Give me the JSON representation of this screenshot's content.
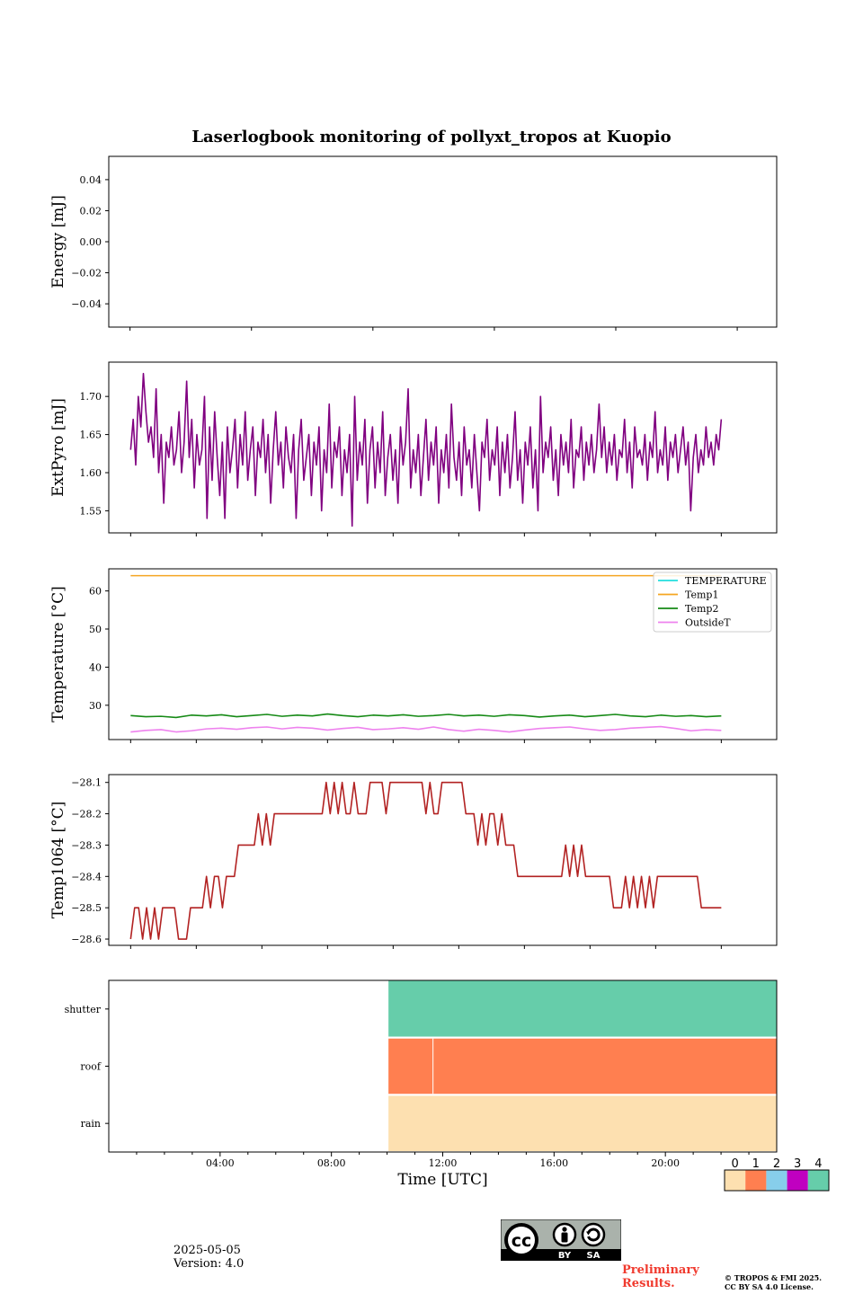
{
  "title": "Laserlogbook monitoring of pollyxt_tropos at Kuopio",
  "footer": {
    "date": "2025-05-05",
    "version": "Version: 4.0",
    "preliminary": [
      "Preliminary",
      "Results."
    ],
    "copyright": [
      "© TROPOS & FMI 2025.",
      "CC BY SA 4.0 License."
    ],
    "license_badge": {
      "cc": "cc",
      "by": "BY",
      "sa": "SA"
    }
  },
  "chart_data": [
    {
      "type": "line",
      "ylabel": "Energy [mJ]",
      "ylim": [
        -0.055,
        0.055
      ],
      "yticks": [
        "0.04",
        "0.02",
        "0.00",
        "−0.02",
        "−0.04"
      ],
      "ytick_values": [
        0.04,
        0.02,
        0.0,
        -0.02,
        -0.04
      ],
      "xlim_hours": [
        0.3,
        22.3
      ],
      "xtick_hours": [
        1,
        5,
        9,
        13,
        17,
        21
      ],
      "series": []
    },
    {
      "type": "line",
      "ylabel": "ExtPyro [mJ]",
      "ylim": [
        1.521,
        1.745
      ],
      "yticks": [
        "1.70",
        "1.65",
        "1.60",
        "1.55"
      ],
      "ytick_values": [
        1.7,
        1.65,
        1.6,
        1.55
      ],
      "xlim_hours": [
        0.0,
        22.9
      ],
      "xtick_hours": [
        0.75,
        3.0,
        5.25,
        7.5,
        9.75,
        12.0,
        14.25,
        16.5,
        18.75,
        21.0
      ],
      "series": [
        {
          "color": "#800080",
          "x_range_hours": [
            0.75,
            21.0
          ],
          "values": [
            1.63,
            1.67,
            1.61,
            1.7,
            1.66,
            1.73,
            1.68,
            1.64,
            1.66,
            1.62,
            1.71,
            1.6,
            1.65,
            1.56,
            1.64,
            1.62,
            1.66,
            1.61,
            1.63,
            1.68,
            1.6,
            1.64,
            1.72,
            1.62,
            1.67,
            1.58,
            1.65,
            1.61,
            1.63,
            1.7,
            1.54,
            1.66,
            1.59,
            1.68,
            1.62,
            1.57,
            1.64,
            1.54,
            1.66,
            1.6,
            1.63,
            1.67,
            1.58,
            1.65,
            1.61,
            1.68,
            1.59,
            1.63,
            1.66,
            1.57,
            1.64,
            1.62,
            1.67,
            1.6,
            1.65,
            1.56,
            1.63,
            1.68,
            1.61,
            1.64,
            1.58,
            1.66,
            1.62,
            1.6,
            1.65,
            1.54,
            1.63,
            1.67,
            1.59,
            1.62,
            1.65,
            1.57,
            1.64,
            1.61,
            1.66,
            1.55,
            1.63,
            1.6,
            1.69,
            1.58,
            1.64,
            1.62,
            1.66,
            1.57,
            1.63,
            1.6,
            1.65,
            1.53,
            1.7,
            1.59,
            1.64,
            1.61,
            1.67,
            1.56,
            1.63,
            1.66,
            1.58,
            1.64,
            1.6,
            1.68,
            1.57,
            1.62,
            1.65,
            1.59,
            1.63,
            1.56,
            1.66,
            1.61,
            1.64,
            1.71,
            1.58,
            1.63,
            1.6,
            1.65,
            1.57,
            1.62,
            1.67,
            1.59,
            1.64,
            1.61,
            1.66,
            1.56,
            1.63,
            1.6,
            1.65,
            1.58,
            1.69,
            1.62,
            1.59,
            1.64,
            1.57,
            1.66,
            1.61,
            1.63,
            1.58,
            1.65,
            1.6,
            1.55,
            1.64,
            1.62,
            1.67,
            1.59,
            1.63,
            1.61,
            1.66,
            1.57,
            1.64,
            1.6,
            1.65,
            1.58,
            1.62,
            1.68,
            1.59,
            1.63,
            1.56,
            1.64,
            1.61,
            1.66,
            1.58,
            1.63,
            1.55,
            1.7,
            1.6,
            1.64,
            1.62,
            1.66,
            1.59,
            1.63,
            1.57,
            1.65,
            1.61,
            1.64,
            1.6,
            1.67,
            1.58,
            1.63,
            1.62,
            1.66,
            1.59,
            1.64,
            1.61,
            1.65,
            1.6,
            1.63,
            1.69,
            1.62,
            1.66,
            1.6,
            1.64,
            1.61,
            1.65,
            1.59,
            1.63,
            1.62,
            1.67,
            1.6,
            1.64,
            1.58,
            1.66,
            1.62,
            1.63,
            1.61,
            1.65,
            1.59,
            1.64,
            1.62,
            1.68,
            1.6,
            1.63,
            1.61,
            1.66,
            1.59,
            1.64,
            1.62,
            1.65,
            1.6,
            1.63,
            1.66,
            1.61,
            1.64,
            1.55,
            1.62,
            1.65,
            1.6,
            1.63,
            1.61,
            1.66,
            1.62,
            1.64,
            1.61,
            1.65,
            1.63,
            1.67
          ]
        }
      ]
    },
    {
      "type": "line",
      "ylabel": "Temperature [°C]",
      "ylim": [
        21.0,
        65.8
      ],
      "yticks": [
        "60",
        "50",
        "40",
        "30"
      ],
      "ytick_values": [
        60,
        50,
        40,
        30
      ],
      "xlim_hours": [
        0.0,
        22.9
      ],
      "xtick_hours": [
        0.75,
        3.0,
        5.25,
        7.5,
        9.75,
        12.0,
        14.25,
        16.5,
        18.75,
        21.0
      ],
      "legend": {
        "position": "top-right",
        "entries": [
          "TEMPERATURE",
          "Temp1",
          "Temp2",
          "OutsideT"
        ]
      },
      "series": [
        {
          "name": "TEMPERATURE",
          "color": "#22dede",
          "values": []
        },
        {
          "name": "Temp1",
          "color": "#f5a623",
          "x_range_hours": [
            0.75,
            21.0
          ],
          "values": [
            64.0,
            64.0
          ]
        },
        {
          "name": "Temp2",
          "color": "#168a16",
          "x_range_hours": [
            0.75,
            21.0
          ],
          "values": [
            27.3,
            27.0,
            27.1,
            26.8,
            27.4,
            27.2,
            27.5,
            27.0,
            27.3,
            27.6,
            27.1,
            27.4,
            27.2,
            27.7,
            27.3,
            27.0,
            27.4,
            27.2,
            27.5,
            27.1,
            27.3,
            27.6,
            27.2,
            27.4,
            27.1,
            27.5,
            27.3,
            26.9,
            27.2,
            27.4,
            27.0,
            27.3,
            27.6,
            27.2,
            27.0,
            27.4,
            27.1,
            27.3,
            27.0,
            27.2
          ]
        },
        {
          "name": "OutsideT",
          "color": "#ee82ee",
          "x_range_hours": [
            0.75,
            21.0
          ],
          "values": [
            23.0,
            23.4,
            23.6,
            23.0,
            23.3,
            23.8,
            24.0,
            23.7,
            24.1,
            24.3,
            23.8,
            24.2,
            24.0,
            23.5,
            23.9,
            24.2,
            23.6,
            23.8,
            24.1,
            23.7,
            24.3,
            23.6,
            23.2,
            23.7,
            23.4,
            23.0,
            23.5,
            23.9,
            24.1,
            24.3,
            23.8,
            23.4,
            23.6,
            24.0,
            24.2,
            24.4,
            23.9,
            23.3,
            23.6,
            23.4
          ]
        }
      ]
    },
    {
      "type": "line",
      "ylabel": "Temp1064 [°C]",
      "ylim": [
        -28.62,
        -28.075
      ],
      "yticks": [
        "−28.1",
        "−28.2",
        "−28.3",
        "−28.4",
        "−28.5",
        "−28.6"
      ],
      "ytick_values": [
        -28.1,
        -28.2,
        -28.3,
        -28.4,
        -28.5,
        -28.6
      ],
      "xlim_hours": [
        0.0,
        22.9
      ],
      "xtick_hours": [
        0.75,
        3.0,
        5.25,
        7.5,
        9.75,
        12.0,
        14.25,
        16.5,
        18.75,
        21.0
      ],
      "series": [
        {
          "color": "#b22222",
          "x_range_hours": [
            0.75,
            21.0
          ],
          "values": [
            -28.6,
            -28.5,
            -28.5,
            -28.6,
            -28.5,
            -28.6,
            -28.5,
            -28.6,
            -28.5,
            -28.5,
            -28.5,
            -28.5,
            -28.6,
            -28.6,
            -28.6,
            -28.5,
            -28.5,
            -28.5,
            -28.5,
            -28.4,
            -28.5,
            -28.4,
            -28.4,
            -28.5,
            -28.4,
            -28.4,
            -28.4,
            -28.3,
            -28.3,
            -28.3,
            -28.3,
            -28.3,
            -28.2,
            -28.3,
            -28.2,
            -28.3,
            -28.2,
            -28.2,
            -28.2,
            -28.2,
            -28.2,
            -28.2,
            -28.2,
            -28.2,
            -28.2,
            -28.2,
            -28.2,
            -28.2,
            -28.2,
            -28.1,
            -28.2,
            -28.1,
            -28.2,
            -28.1,
            -28.2,
            -28.2,
            -28.1,
            -28.2,
            -28.2,
            -28.2,
            -28.1,
            -28.1,
            -28.1,
            -28.1,
            -28.2,
            -28.1,
            -28.1,
            -28.1,
            -28.1,
            -28.1,
            -28.1,
            -28.1,
            -28.1,
            -28.1,
            -28.2,
            -28.1,
            -28.2,
            -28.2,
            -28.1,
            -28.1,
            -28.1,
            -28.1,
            -28.1,
            -28.1,
            -28.2,
            -28.2,
            -28.2,
            -28.3,
            -28.2,
            -28.3,
            -28.2,
            -28.2,
            -28.3,
            -28.2,
            -28.3,
            -28.3,
            -28.3,
            -28.4,
            -28.4,
            -28.4,
            -28.4,
            -28.4,
            -28.4,
            -28.4,
            -28.4,
            -28.4,
            -28.4,
            -28.4,
            -28.4,
            -28.3,
            -28.4,
            -28.3,
            -28.4,
            -28.3,
            -28.4,
            -28.4,
            -28.4,
            -28.4,
            -28.4,
            -28.4,
            -28.4,
            -28.5,
            -28.5,
            -28.5,
            -28.4,
            -28.5,
            -28.4,
            -28.5,
            -28.4,
            -28.5,
            -28.4,
            -28.5,
            -28.4,
            -28.4,
            -28.4,
            -28.4,
            -28.4,
            -28.4,
            -28.4,
            -28.4,
            -28.4,
            -28.4,
            -28.4,
            -28.5,
            -28.5,
            -28.5,
            -28.5,
            -28.5,
            -28.5
          ]
        }
      ]
    },
    {
      "type": "heatmap",
      "xlabel": "Time [UTC]",
      "yticks": [
        "shutter",
        "roof",
        "rain"
      ],
      "xlim_hours": [
        0.0,
        24.0
      ],
      "xticks": [
        "04:00",
        "08:00",
        "12:00",
        "16:00",
        "20:00"
      ],
      "xtick_hours": [
        4,
        8,
        12,
        16,
        20
      ],
      "data_start_hours": 10.05,
      "rows": [
        {
          "label": "shutter",
          "value": 4
        },
        {
          "label": "roof",
          "value": 1,
          "break_hours": 11.65
        },
        {
          "label": "rain",
          "value": 0
        }
      ],
      "colorbar": {
        "labels": [
          "0",
          "1",
          "2",
          "3",
          "4"
        ],
        "colors": [
          "#fde0b0",
          "#ff7f50",
          "#87ceeb",
          "#c000c0",
          "#66cdaa"
        ]
      }
    }
  ]
}
